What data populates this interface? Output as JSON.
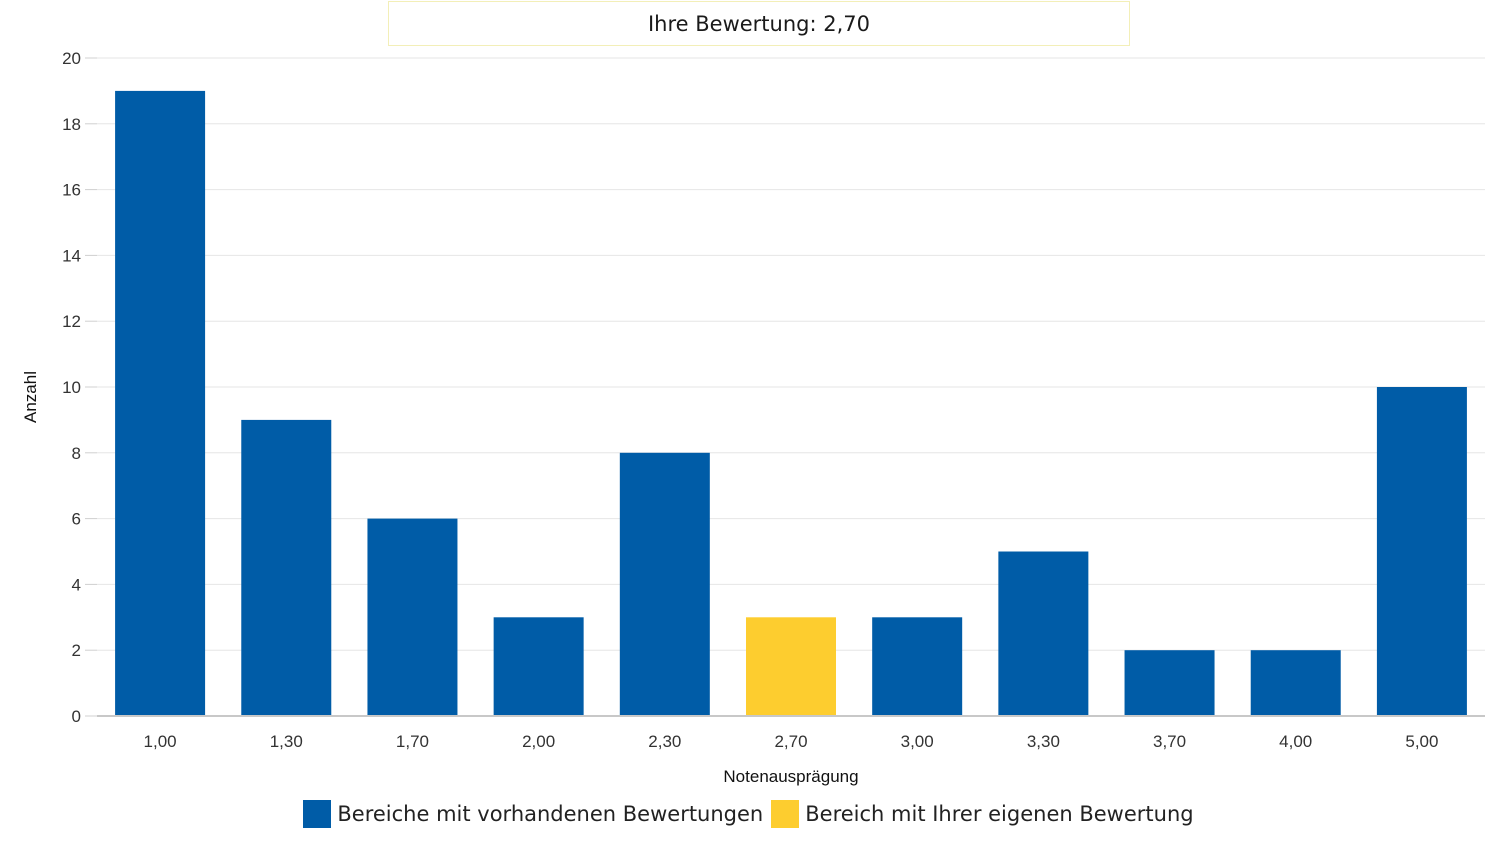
{
  "chart_data": {
    "type": "bar",
    "title": "Ihre Bewertung: 2,70",
    "xlabel": "Notenausprägung",
    "ylabel": "Anzahl",
    "categories": [
      "1,00",
      "1,30",
      "1,70",
      "2,00",
      "2,30",
      "2,70",
      "3,00",
      "3,30",
      "3,70",
      "4,00",
      "5,00"
    ],
    "values": [
      19,
      9,
      6,
      3,
      8,
      3,
      3,
      5,
      2,
      2,
      10
    ],
    "highlight_category": "2,70",
    "ylim": [
      0,
      20
    ],
    "yticks": [
      "0",
      "2",
      "4",
      "6",
      "8",
      "10",
      "12",
      "14",
      "16",
      "18",
      "20"
    ],
    "grid": true,
    "legend_position": "bottom",
    "colors": {
      "default": "#005ca7",
      "highlight": "#fdcd2f"
    },
    "legend": [
      {
        "label": "Bereiche mit vorhandenen Bewertungen",
        "color": "#005ca7"
      },
      {
        "label": "Bereich mit Ihrer eigenen Bewertung",
        "color": "#fdcd2f"
      }
    ]
  }
}
